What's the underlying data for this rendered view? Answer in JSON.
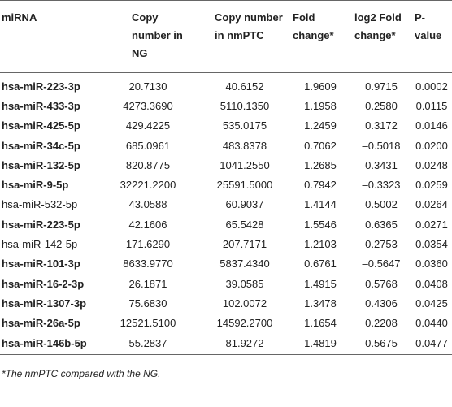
{
  "table": {
    "header": [
      "miRNA",
      "Copy number in NG",
      "Copy number in nmPTC",
      "Fold change*",
      "log2 Fold change*",
      "P-value"
    ],
    "rows": [
      [
        "hsa-miR-223-3p",
        "20.7130",
        "40.6152",
        "1.9609",
        "0.9715",
        "0.0002"
      ],
      [
        "hsa-miR-433-3p",
        "4273.3690",
        "5110.1350",
        "1.1958",
        "0.2580",
        "0.0115"
      ],
      [
        "hsa-miR-425-5p",
        "429.4225",
        "535.0175",
        "1.2459",
        "0.3172",
        "0.0146"
      ],
      [
        "hsa-miR-34c-5p",
        "685.0961",
        "483.8378",
        "0.7062",
        "–0.5018",
        "0.0200"
      ],
      [
        "hsa-miR-132-5p",
        "820.8775",
        "1041.2550",
        "1.2685",
        "0.3431",
        "0.0248"
      ],
      [
        "hsa-miR-9-5p",
        "32221.2200",
        "25591.5000",
        "0.7942",
        "–0.3323",
        "0.0259"
      ],
      [
        "hsa-miR-532-5p",
        "43.0588",
        "60.9037",
        "1.4144",
        "0.5002",
        "0.0264"
      ],
      [
        "hsa-miR-223-5p",
        "42.1606",
        "65.5428",
        "1.5546",
        "0.6365",
        "0.0271"
      ],
      [
        "hsa-miR-142-5p",
        "171.6290",
        "207.7171",
        "1.2103",
        "0.2753",
        "0.0354"
      ],
      [
        "hsa-miR-101-3p",
        "8633.9770",
        "5837.4340",
        "0.6761",
        "–0.5647",
        "0.0360"
      ],
      [
        "hsa-miR-16-2-3p",
        "26.1871",
        "39.0585",
        "1.4915",
        "0.5768",
        "0.0408"
      ],
      [
        "hsa-miR-1307-3p",
        "75.6830",
        "102.0072",
        "1.3478",
        "0.4306",
        "0.0425"
      ],
      [
        "hsa-miR-26a-5p",
        "12521.5100",
        "14592.2700",
        "1.1654",
        "0.2208",
        "0.0440"
      ],
      [
        "hsa-miR-146b-5p",
        "55.2837",
        "81.9272",
        "1.4819",
        "0.5675",
        "0.0477"
      ]
    ],
    "bold_rows": [
      true,
      true,
      true,
      true,
      true,
      true,
      false,
      true,
      false,
      true,
      true,
      true,
      true,
      true
    ]
  },
  "footnote": "*The nmPTC compared with the NG."
}
